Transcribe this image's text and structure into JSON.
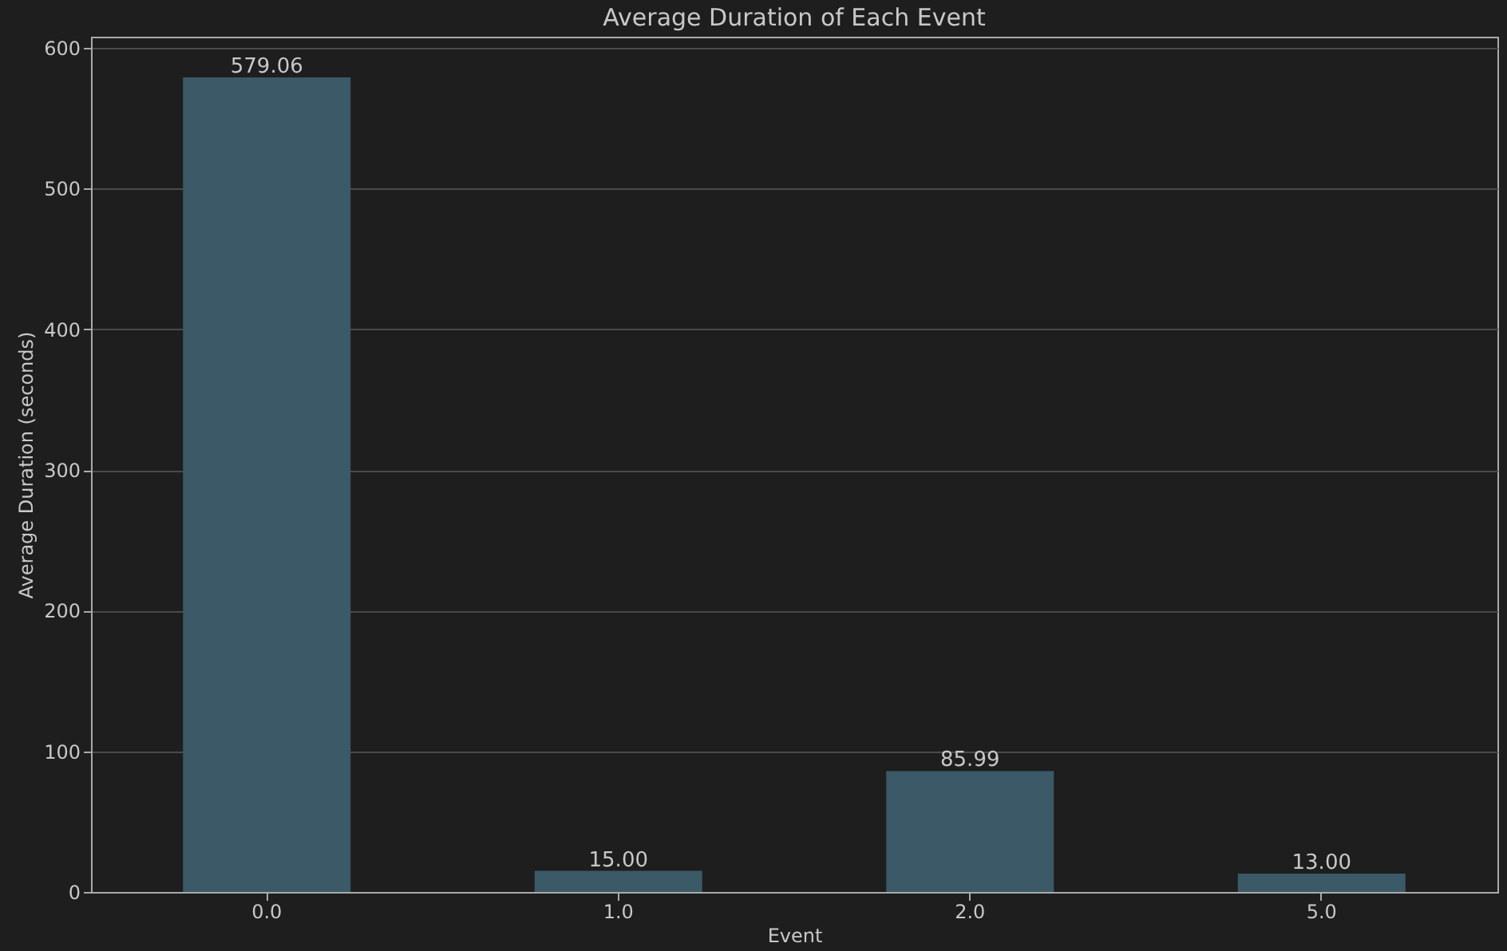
{
  "chart_data": {
    "type": "bar",
    "title": "Average Duration of Each Event",
    "xlabel": "Event",
    "ylabel": "Average Duration (seconds)",
    "categories": [
      "0.0",
      "1.0",
      "2.0",
      "5.0"
    ],
    "values": [
      579.06,
      15.0,
      85.99,
      13.0
    ],
    "value_labels": [
      "579.06",
      "15.00",
      "85.99",
      "13.00"
    ],
    "color": "#3b5966",
    "ylim": [
      0,
      608
    ],
    "yticks": [
      0,
      100,
      200,
      300,
      400,
      500,
      600
    ],
    "grid": "y"
  }
}
